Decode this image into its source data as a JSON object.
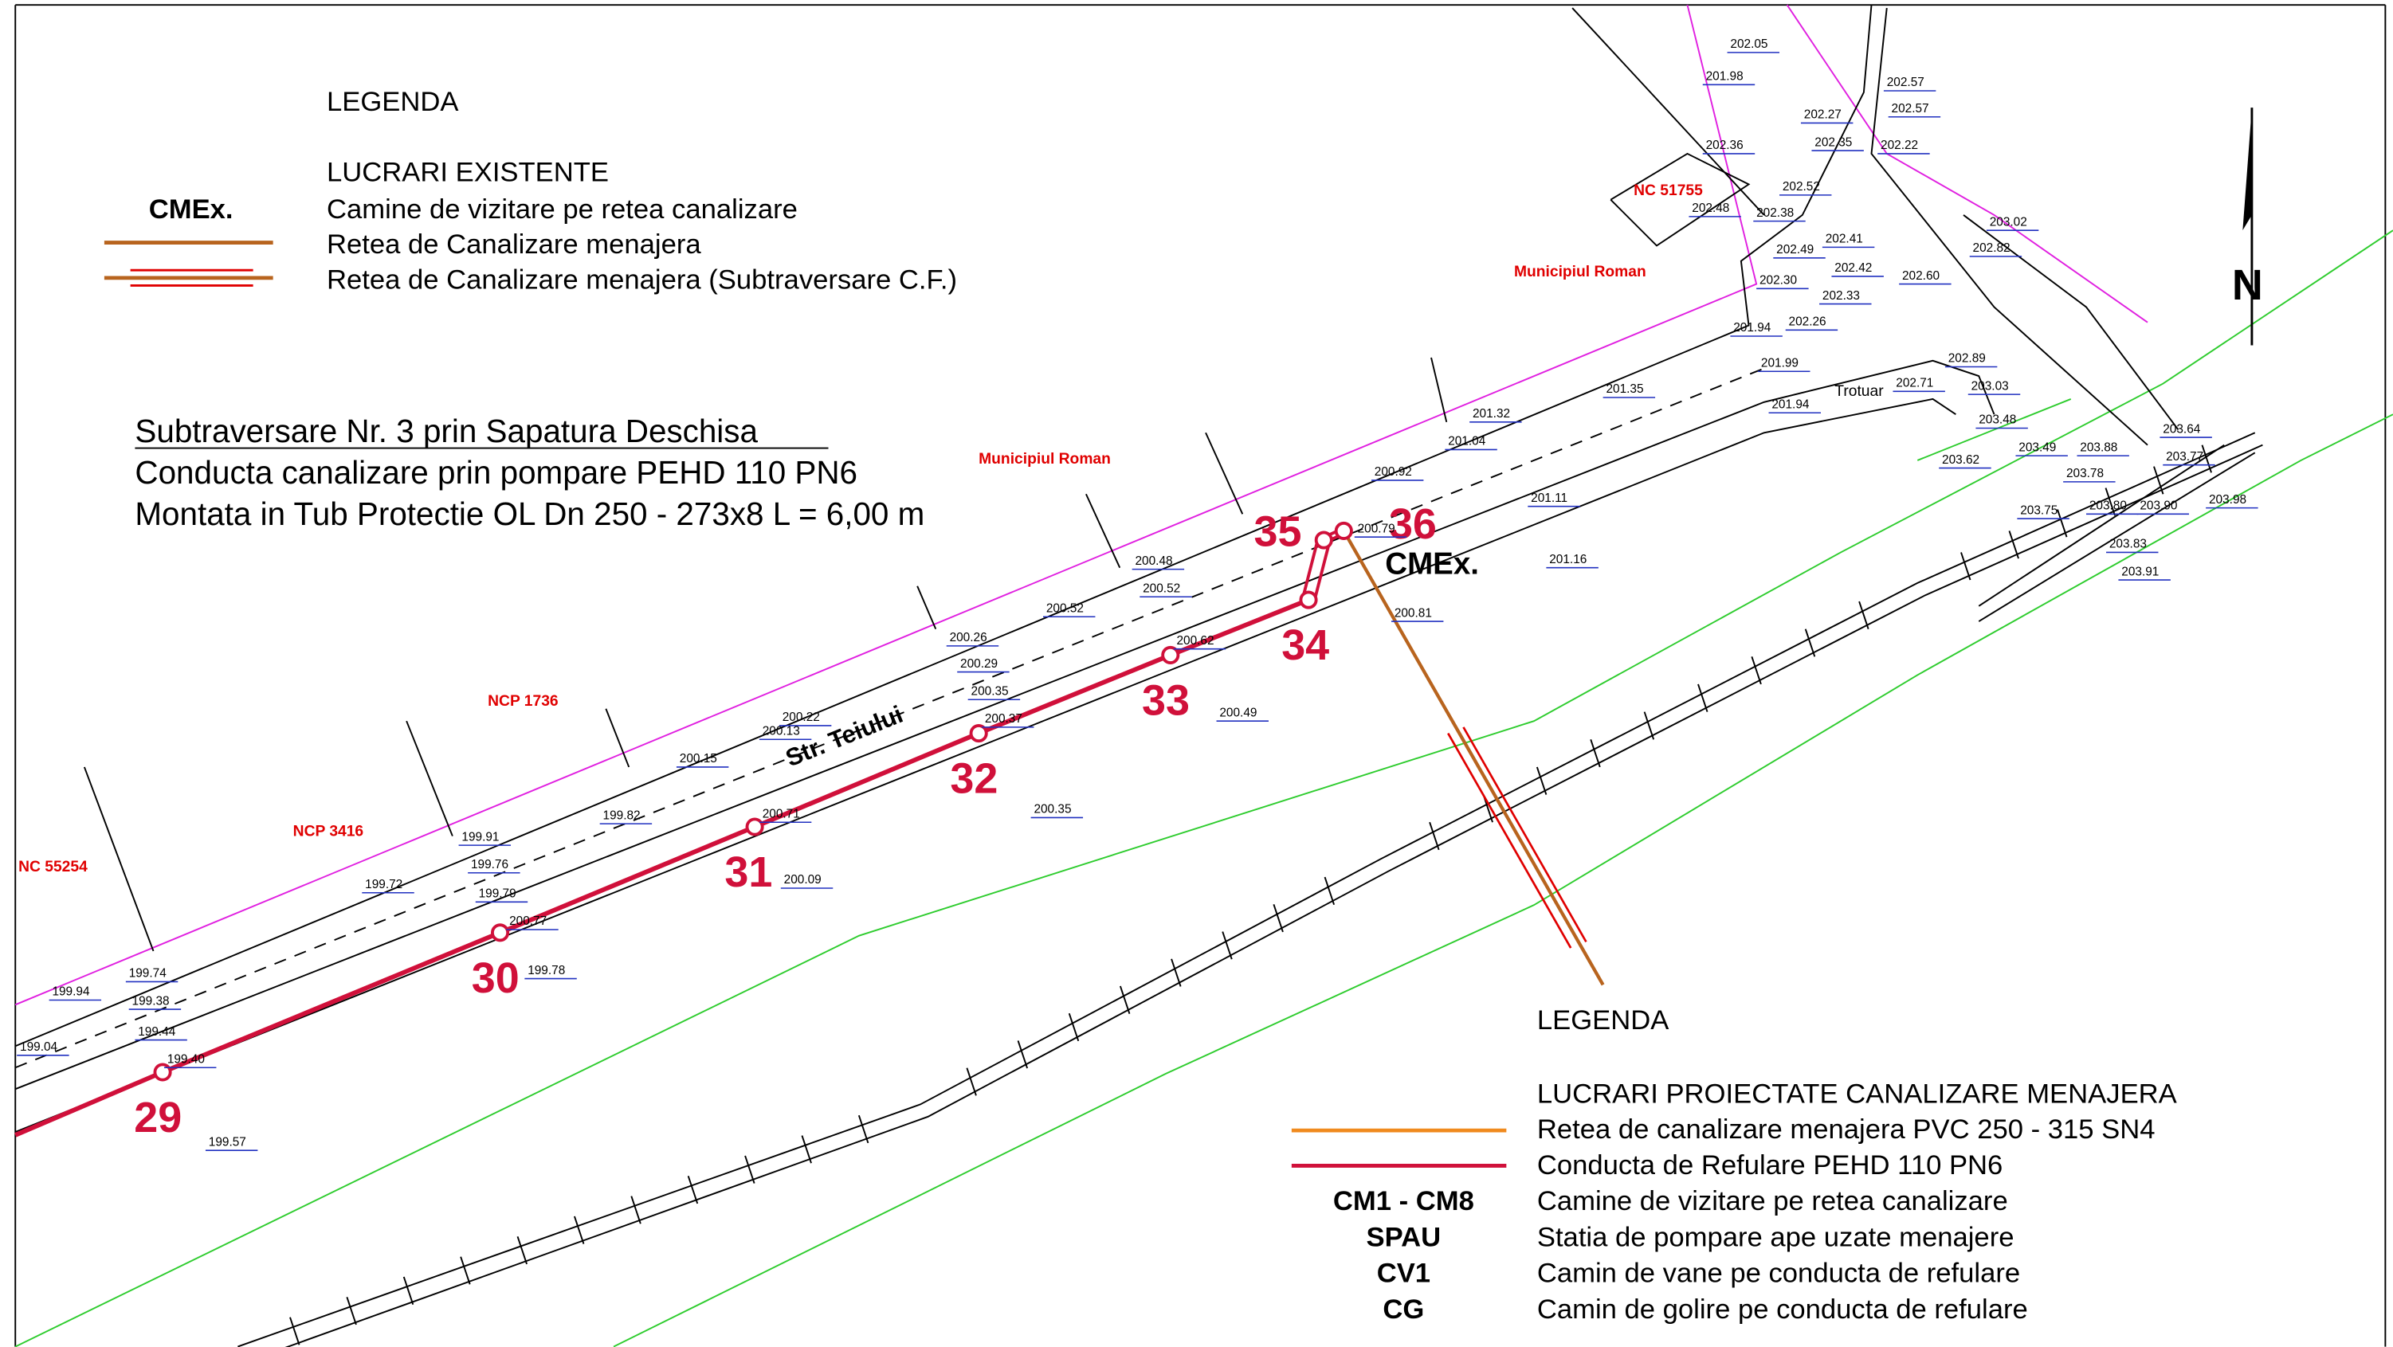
{
  "legend_existing": {
    "title": "LEGENDA",
    "subtitle": "LUCRARI EXISTENTE",
    "symbol": "CMEx.",
    "items": [
      "Camine de vizitare pe retea canalizare",
      "Retea de Canalizare menajera",
      "Retea de Canalizare menajera (Subtraversare C.F.)"
    ]
  },
  "crossing_note": [
    "Subtraversare Nr. 3 prin Sapatura Deschisa",
    "Conducta canalizare prin pompare PEHD 110 PN6",
    "Montata in Tub Protectie OL Dn 250 - 273x8 L = 6,00 m"
  ],
  "legend_proposed": {
    "title": "LEGENDA",
    "subtitle": "LUCRARI PROIECTATE CANALIZARE MENAJERA",
    "items": [
      {
        "text": "Retea de canalizare menajera PVC 250 - 315 SN4"
      },
      {
        "text": "Conducta de Refulare PEHD 110 PN6"
      },
      {
        "symbol": "CM1 - CM8",
        "text": "Camine de vizitare pe retea canalizare"
      },
      {
        "symbol": "SPAU",
        "text": "Statia de pompare ape uzate menajere"
      },
      {
        "symbol": "CV1",
        "text": "Camin de vane pe conducta de refulare"
      },
      {
        "symbol": "CG",
        "text": "Camin de golire pe conducta de refulare"
      }
    ]
  },
  "parcels": [
    "NC 51755",
    "Municipiul Roman",
    "Municipiul Roman",
    "NCP 1736",
    "NCP 3416",
    "NC 55254"
  ],
  "street": "Str. Teiului",
  "sidewalk": "Trotuar",
  "existing_manhole": "CMEx.",
  "north": "N",
  "manholes": [
    "29",
    "30",
    "31",
    "32",
    "33",
    "34",
    "35",
    "36"
  ],
  "elevations": [
    "202.05",
    "201.98",
    "202.57",
    "202.27",
    "202.57",
    "202.35",
    "202.22",
    "202.36",
    "202.52",
    "202.48",
    "202.38",
    "203.02",
    "202.41",
    "202.49",
    "202.82",
    "202.42",
    "202.30",
    "202.60",
    "202.33",
    "201.94",
    "202.26",
    "202.89",
    "201.99",
    "202.71",
    "203.03",
    "201.35",
    "201.94",
    "201.32",
    "203.48",
    "203.64",
    "201.04",
    "203.49",
    "203.88",
    "203.77",
    "203.62",
    "200.92",
    "203.78",
    "201.11",
    "203.75",
    "203.80",
    "203.90",
    "203.98",
    "200.79",
    "203.83",
    "200.48",
    "201.16",
    "203.91",
    "200.52",
    "200.52",
    "200.81",
    "200.26",
    "200.62",
    "200.29",
    "200.35",
    "200.37",
    "200.49",
    "200.22",
    "200.13",
    "200.15",
    "200.71",
    "200.35",
    "199.82",
    "199.91",
    "199.76",
    "200.09",
    "199.79",
    "199.72",
    "200.77",
    "199.78",
    "199.74",
    "199.94",
    "199.38",
    "199.44",
    "199.04",
    "199.40",
    "199.57"
  ]
}
